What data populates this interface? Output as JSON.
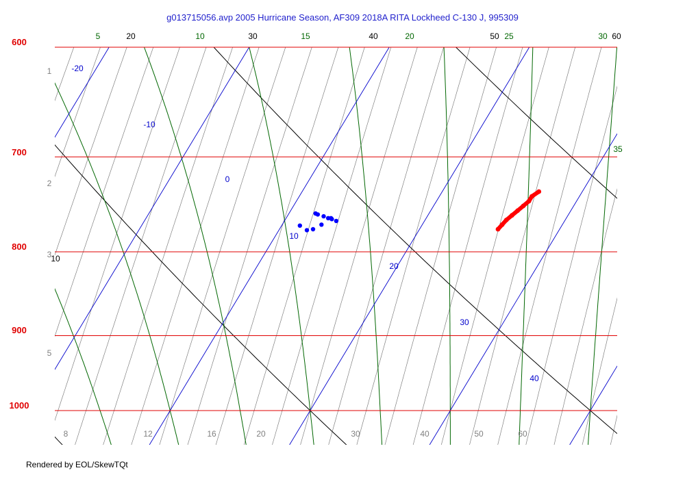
{
  "window": {
    "title": "g013715056.avp  2005 Hurricane Season, AF309 2018A RITA Lockheed C-130 J, 995309",
    "footer": "Rendered by EOL/SkewTQt"
  },
  "colors": {
    "isobar": "#e00000",
    "isotherm": "#0000cc",
    "dry_adiabat": "#000000",
    "moist_adiabat": "#006600",
    "mixing_ratio": "#808080",
    "temperature_trace": "#ff0000",
    "dewpoint_trace": "#0000ff",
    "title_text": "#1f1fcc"
  },
  "chart_data": {
    "type": "scatter",
    "title": "g013715056.avp  2005 Hurricane Season, AF309 2018A RITA Lockheed C-130 J, 995309",
    "subtitle": "",
    "xlabel": "",
    "ylabel": "",
    "log_y": true,
    "grid": true,
    "ylim": [
      1050,
      600
    ],
    "pressure_labels": [
      "600",
      "700",
      "800",
      "900",
      "1000"
    ],
    "isotherm_labels": [
      "-20",
      "-10",
      "0",
      "10",
      "20",
      "30",
      "40"
    ],
    "dry_adiabat_labels": [
      "10",
      "20",
      "30",
      "40",
      "50",
      "60"
    ],
    "moist_adiabat_labels": [
      "5",
      "10",
      "15",
      "20",
      "25",
      "30",
      "35"
    ],
    "mixing_ratio_labels": [
      "1",
      "2",
      "3",
      "5",
      "8",
      "12",
      "16",
      "20",
      "30",
      "40",
      "50",
      "60"
    ],
    "series": [
      {
        "name": "",
        "values": [
          {
            "p": 735,
            "t": 26.9
          },
          {
            "p": 740,
            "t": 26.6
          },
          {
            "p": 745,
            "t": 26.6
          },
          {
            "p": 750,
            "t": 26.4
          },
          {
            "p": 755,
            "t": 26.2
          },
          {
            "p": 760,
            "t": 26.0
          },
          {
            "p": 765,
            "t": 25.8
          },
          {
            "p": 770,
            "t": 25.7
          },
          {
            "p": 775,
            "t": 25.6
          }
        ]
      },
      {
        "name": "",
        "values": [
          {
            "p": 758,
            "t": 11.9
          },
          {
            "p": 759,
            "t": 12.1
          },
          {
            "p": 761,
            "t": 12.6
          },
          {
            "p": 763,
            "t": 13.0
          },
          {
            "p": 764,
            "t": 13.3
          },
          {
            "p": 763,
            "t": 13.2
          },
          {
            "p": 766,
            "t": 13.7
          },
          {
            "p": 770,
            "t": 12.8
          },
          {
            "p": 775,
            "t": 12.4
          },
          {
            "p": 776,
            "t": 12.0
          },
          {
            "p": 771,
            "t": 11.3
          }
        ]
      }
    ]
  }
}
